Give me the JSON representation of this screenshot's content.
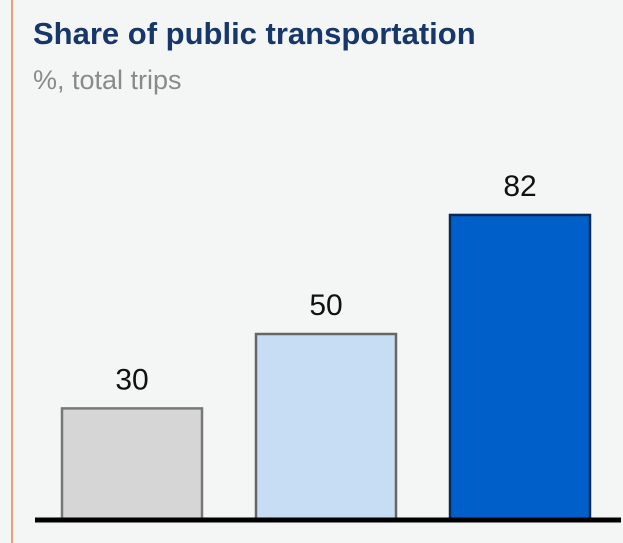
{
  "chart_data": {
    "type": "bar",
    "title": "Share of public transportation",
    "subtitle": "%, total trips",
    "values": [
      30,
      50,
      82
    ],
    "colors": [
      "#d6d6d6",
      "#c6ddf3",
      "#005fc9"
    ]
  }
}
